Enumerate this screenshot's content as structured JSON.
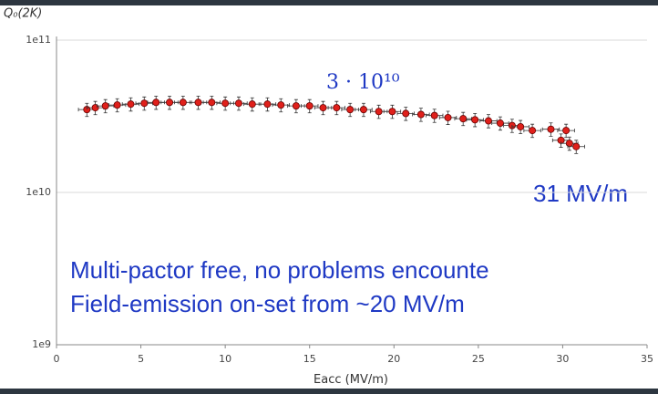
{
  "chart_data": {
    "type": "scatter",
    "y_label": "Q₀(2K)",
    "x_label": "Eacc (MV/m)",
    "annotations": [
      "3 · 10¹⁰",
      "31 MV/m",
      "Multi-pactor free, no problems encounte",
      "Field-emission on-set from ~20 MV/m"
    ],
    "series": [
      {
        "color": "#e0201b",
        "x": [
          1.8,
          2.3,
          2.9,
          3.6,
          4.4,
          5.2,
          5.9,
          6.7,
          7.5,
          8.4,
          9.2,
          10.0,
          10.8,
          11.6,
          12.5,
          13.3,
          14.2,
          15.0,
          15.8,
          16.6,
          17.4,
          18.2,
          19.1,
          19.9,
          20.7,
          21.6,
          22.4,
          23.2,
          24.1,
          24.8,
          25.6,
          26.3,
          27.0,
          27.5,
          28.2,
          29.3,
          29.9,
          30.2,
          30.4,
          30.8
        ],
        "values": [
          35000000000.0,
          36000000000.0,
          37000000000.0,
          37500000000.0,
          38000000000.0,
          38500000000.0,
          39000000000.0,
          39000000000.0,
          39000000000.0,
          39000000000.0,
          39000000000.0,
          38500000000.0,
          38500000000.0,
          38000000000.0,
          38000000000.0,
          37500000000.0,
          37000000000.0,
          37000000000.0,
          36000000000.0,
          36000000000.0,
          35000000000.0,
          35000000000.0,
          34000000000.0,
          34000000000.0,
          33000000000.0,
          32500000000.0,
          32000000000.0,
          31000000000.0,
          30500000000.0,
          30000000000.0,
          29500000000.0,
          28500000000.0,
          27500000000.0,
          27000000000.0,
          25500000000.0,
          26000000000.0,
          22000000000.0,
          25500000000.0,
          21000000000.0,
          20000000000.0
        ],
        "xerr": 0.5,
        "yerr_rel": 0.1
      }
    ],
    "xlim": [
      0,
      35
    ],
    "xticks": [
      0,
      5,
      10,
      15,
      20,
      25,
      30,
      35
    ],
    "ylim": [
      1000000000.0,
      100000000000.0
    ],
    "log_y": true,
    "yticks": [
      {
        "value": 1000000000.0,
        "label": "1e9"
      },
      {
        "value": 10000000000.0,
        "label": "1e10"
      },
      {
        "value": 100000000000.0,
        "label": "1e11"
      }
    ],
    "grid": true
  }
}
